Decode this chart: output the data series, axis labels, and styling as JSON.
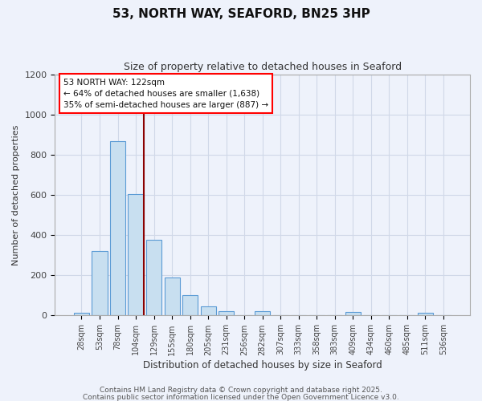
{
  "title": "53, NORTH WAY, SEAFORD, BN25 3HP",
  "subtitle": "Size of property relative to detached houses in Seaford",
  "xlabel": "Distribution of detached houses by size in Seaford",
  "ylabel": "Number of detached properties",
  "bar_labels": [
    "28sqm",
    "53sqm",
    "78sqm",
    "104sqm",
    "129sqm",
    "155sqm",
    "180sqm",
    "205sqm",
    "231sqm",
    "256sqm",
    "282sqm",
    "307sqm",
    "333sqm",
    "358sqm",
    "383sqm",
    "409sqm",
    "434sqm",
    "460sqm",
    "485sqm",
    "511sqm",
    "536sqm"
  ],
  "bar_heights": [
    12,
    323,
    868,
    607,
    378,
    188,
    103,
    44,
    22,
    0,
    20,
    0,
    0,
    0,
    0,
    18,
    0,
    0,
    0,
    15,
    0
  ],
  "bar_color": "#c8dff0",
  "bar_edge_color": "#5b9bd5",
  "background_color": "#eef2fb",
  "grid_color": "#d0d8e8",
  "vline_color": "#8b0000",
  "vline_bar_idx": 3,
  "annotation_title": "53 NORTH WAY: 122sqm",
  "annotation_line1": "← 64% of detached houses are smaller (1,638)",
  "annotation_line2": "35% of semi-detached houses are larger (887) →",
  "ylim": [
    0,
    1200
  ],
  "yticks": [
    0,
    200,
    400,
    600,
    800,
    1000,
    1200
  ],
  "footnote1": "Contains HM Land Registry data © Crown copyright and database right 2025.",
  "footnote2": "Contains public sector information licensed under the Open Government Licence v3.0."
}
